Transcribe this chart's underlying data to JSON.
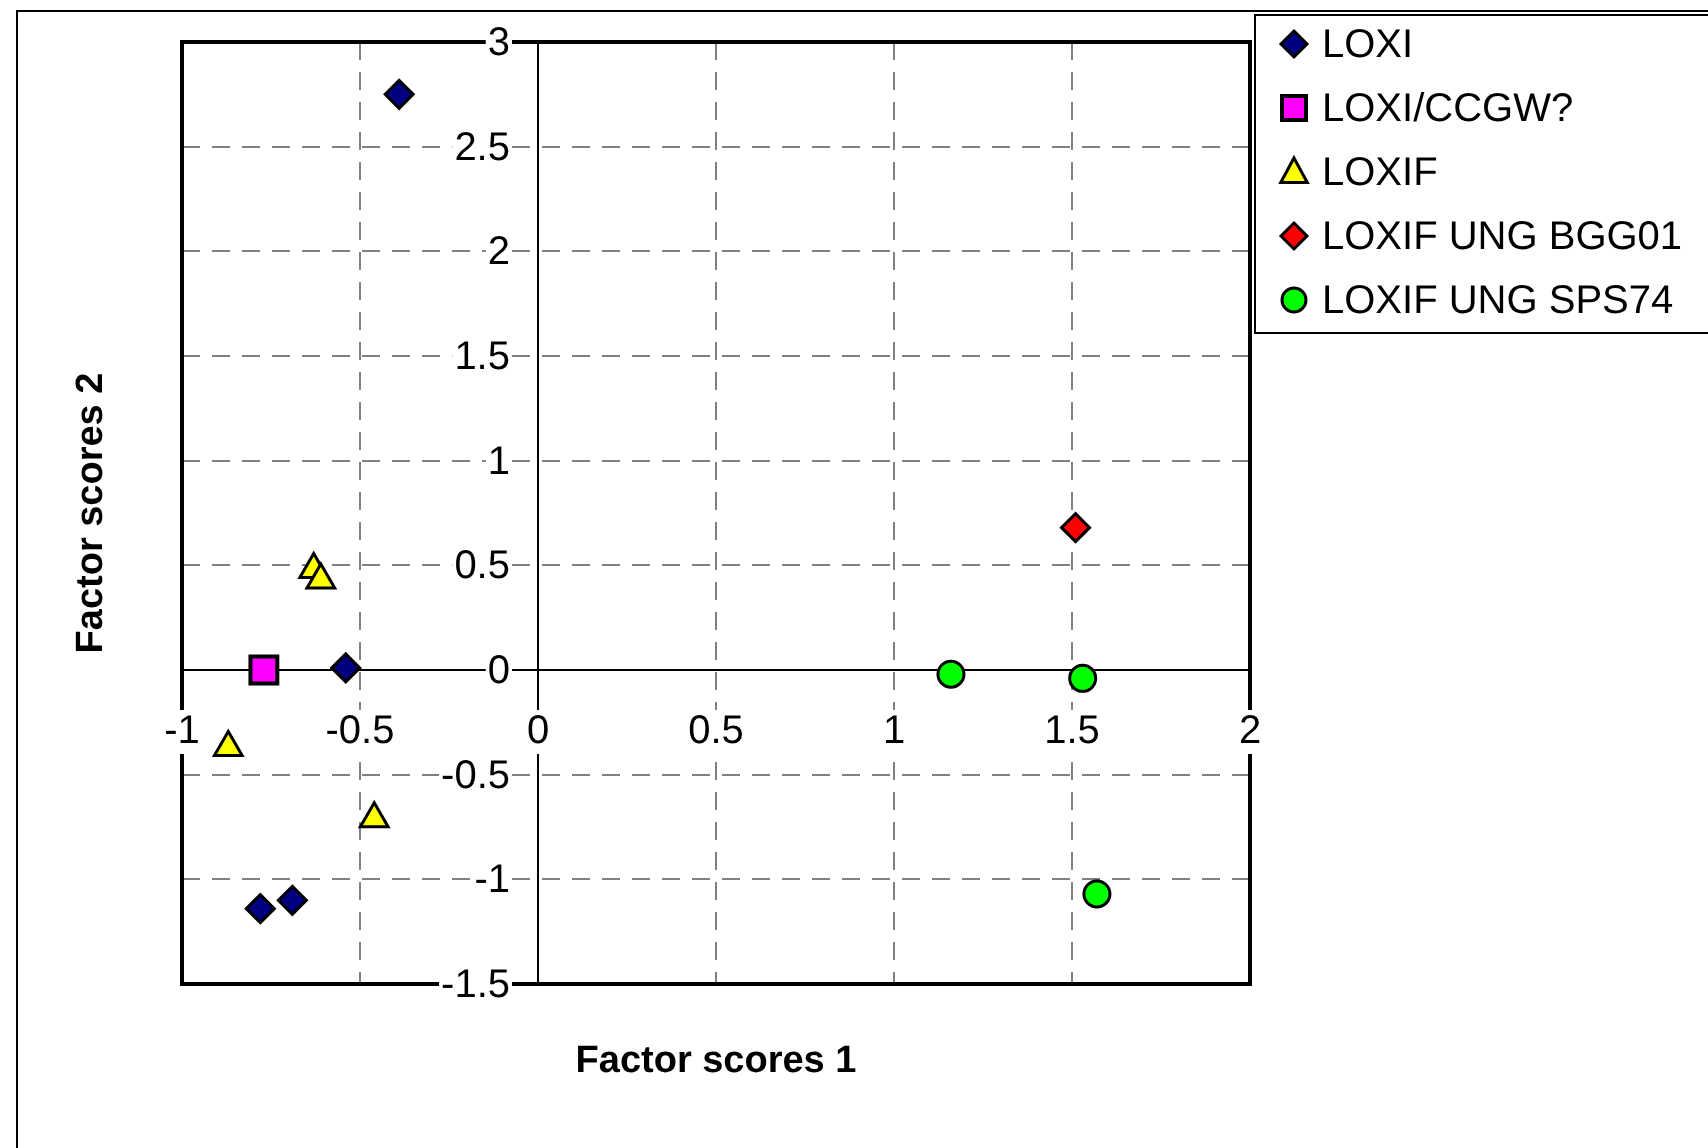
{
  "chart_data": {
    "type": "scatter",
    "xlabel": "Factor scores 1",
    "ylabel": "Factor scores 2",
    "xlim": [
      -1,
      2
    ],
    "xticks": [
      -1,
      -0.5,
      0,
      0.5,
      1,
      1.5,
      2
    ],
    "ylim": [
      -1.5,
      3
    ],
    "yticks": [
      -1.5,
      -1,
      -0.5,
      0,
      0.5,
      1,
      1.5,
      2,
      2.5,
      3
    ],
    "grid": true,
    "legend": "top right",
    "series": [
      {
        "name": "LOXI",
        "color": "#000080",
        "marker": "diamond",
        "x": [
          -0.39,
          -0.54,
          -0.78,
          -0.69
        ],
        "values": [
          2.75,
          0.01,
          -1.14,
          -1.1
        ]
      },
      {
        "name": "LOXI/CCGW?",
        "color": "#ff00ff",
        "marker": "square",
        "x": [
          -0.77
        ],
        "values": [
          0
        ]
      },
      {
        "name": "LOXIF",
        "color": "#ffff00",
        "marker": "triangle",
        "x": [
          -0.63,
          -0.61,
          -0.87,
          -0.46
        ],
        "values": [
          0.48,
          0.43,
          -0.37,
          -0.71
        ]
      },
      {
        "name": "LOXIF UNG BGG01",
        "color": "#ff0000",
        "marker": "diamond",
        "x": [
          1.51
        ],
        "values": [
          0.68
        ]
      },
      {
        "name": "LOXIF UNG SPS74",
        "color": "#00ff00",
        "marker": "circle",
        "x": [
          1.16,
          1.53,
          1.57
        ],
        "values": [
          -0.02,
          -0.04,
          -1.07
        ]
      }
    ]
  }
}
